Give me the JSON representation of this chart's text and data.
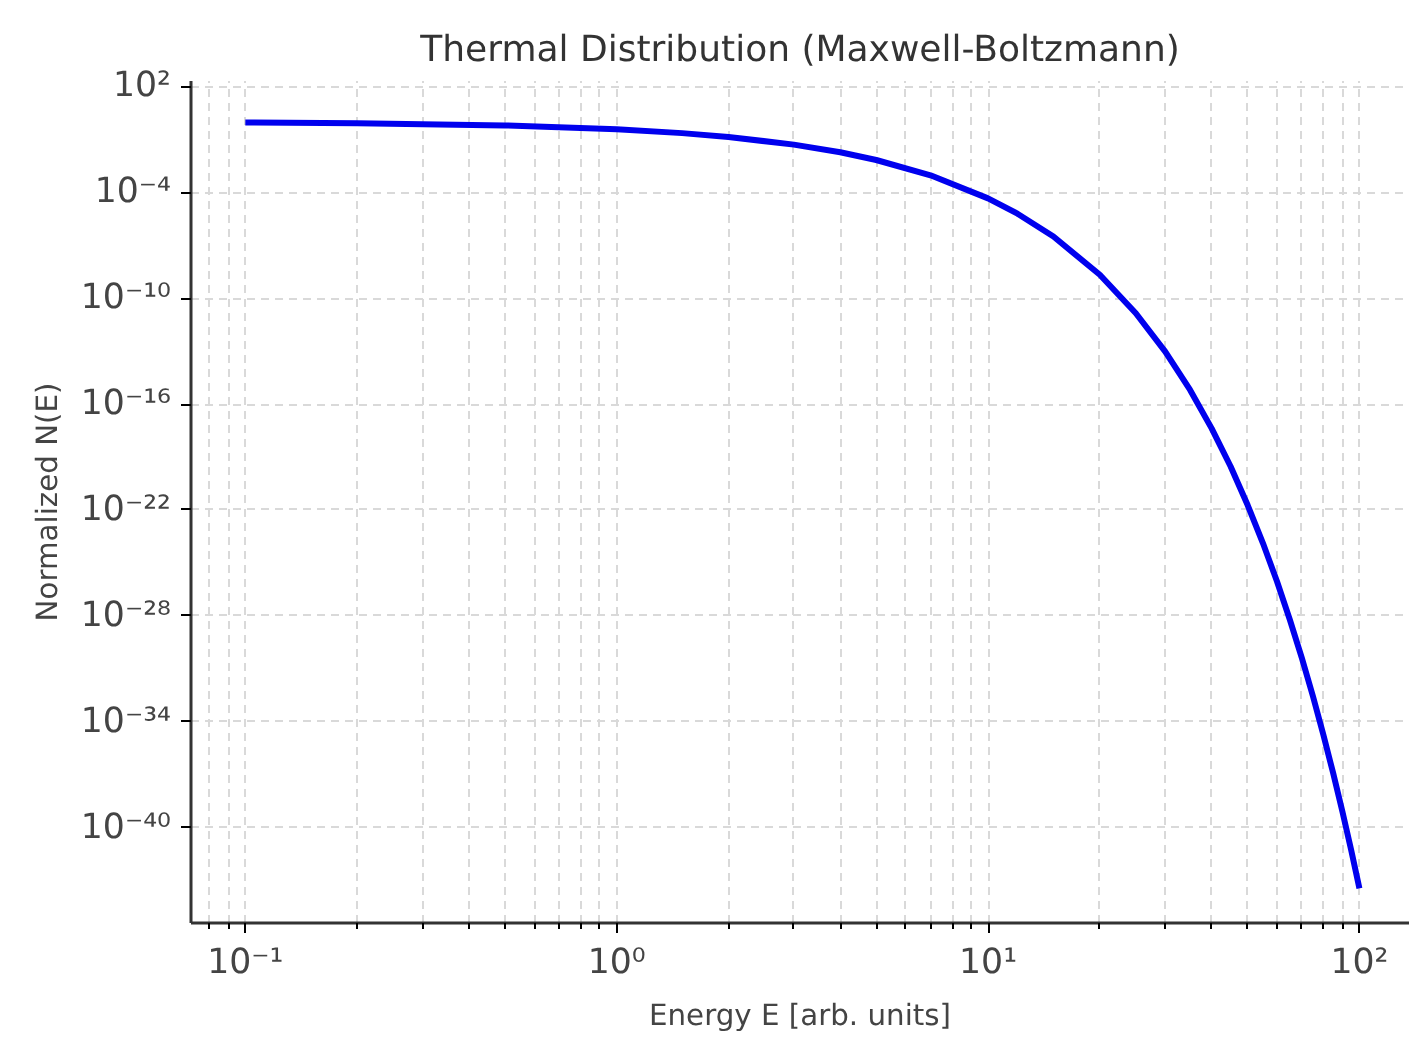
{
  "chart_data": {
    "type": "line",
    "title": "Thermal Distribution (Maxwell-Boltzmann)",
    "xlabel": "Energy E [arb. units]",
    "ylabel": "Normalized N(E)",
    "log": "xy",
    "grid": true,
    "marker": "none",
    "line_style": "solid",
    "xlim": [
      0.0714,
      136
    ],
    "ylim": [
      4e-46,
      200
    ],
    "xticks": [
      {
        "value": 0.1,
        "label": "10⁻¹"
      },
      {
        "value": 1,
        "label": "10⁰"
      },
      {
        "value": 10,
        "label": "10¹"
      },
      {
        "value": 100,
        "label": "10²"
      }
    ],
    "yticks": [
      {
        "value": 100.0,
        "label": "10²"
      },
      {
        "value": 0.0001,
        "label": "10⁻⁴"
      },
      {
        "value": 1e-10,
        "label": "10⁻¹⁰"
      },
      {
        "value": 1e-16,
        "label": "10⁻¹⁶"
      },
      {
        "value": 1e-22,
        "label": "10⁻²²"
      },
      {
        "value": 1e-28,
        "label": "10⁻²⁸"
      },
      {
        "value": 1e-34,
        "label": "10⁻³⁴"
      },
      {
        "value": 1e-40,
        "label": "10⁻⁴⁰"
      }
    ],
    "x": [
      0.1,
      0.2,
      0.5,
      1,
      1.5,
      2,
      3,
      4,
      5,
      7,
      10,
      12,
      15,
      20,
      25,
      30,
      35,
      40,
      45,
      50,
      55,
      60,
      65,
      70,
      75,
      80,
      85,
      90,
      95,
      100
    ],
    "series": [
      {
        "color": "#0000ee",
        "values": [
          0.905,
          0.819,
          0.607,
          0.368,
          0.223,
          0.135,
          0.0498,
          0.0183,
          0.0067,
          0.00091,
          4.5e-05,
          6.1e-06,
          3.1e-07,
          2.1e-09,
          1.4e-11,
          9.4e-14,
          6.3e-16,
          4.2e-18,
          2.9e-20,
          1.9e-22,
          1.3e-24,
          8.8e-27,
          5.9e-29,
          4e-31,
          2.7e-33,
          1.8e-35,
          1.2e-37,
          8.2e-40,
          5.5e-42,
          3.7e-44
        ]
      }
    ]
  }
}
